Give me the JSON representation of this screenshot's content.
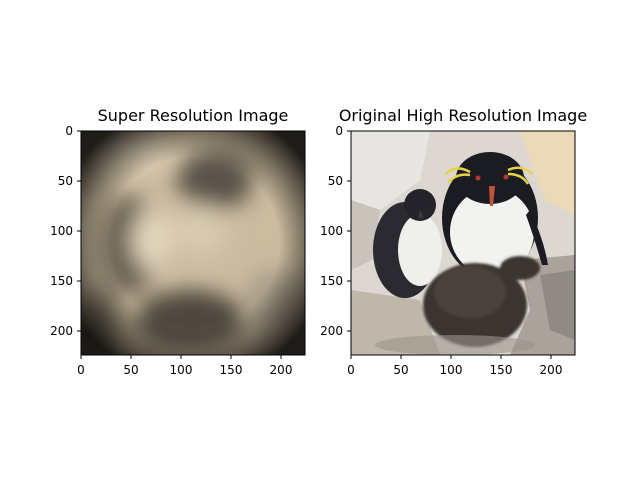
{
  "figure": {
    "panels": [
      {
        "title": "Super Resolution Image",
        "image": "blurry upscaled penguin photo (sepia tones, strong blur)",
        "x_ticks": [
          "0",
          "50",
          "100",
          "150",
          "200"
        ],
        "y_ticks": [
          "0",
          "50",
          "100",
          "150",
          "200"
        ],
        "x_range": [
          0,
          224
        ],
        "y_range": [
          0,
          224
        ]
      },
      {
        "title": "Original High Resolution Image",
        "image": "photo of rockhopper penguins: adult with yellow crest, a grey downy chick, and a fluffy chick on rocks",
        "x_ticks": [
          "0",
          "50",
          "100",
          "150",
          "200"
        ],
        "y_ticks": [
          "0",
          "50",
          "100",
          "150",
          "200"
        ],
        "x_range": [
          0,
          224
        ],
        "y_range": [
          0,
          224
        ]
      }
    ],
    "colors": {
      "sr_base": "#c8b89c",
      "sr_dark": "#1e1a14",
      "photo_rock": "#d6d2cc",
      "photo_sand": "#e9d7b8",
      "penguin_black": "#1b1c22",
      "penguin_white": "#f2f2f0",
      "crest_yellow": "#e8d24a",
      "beak_orange": "#c4523a"
    }
  }
}
